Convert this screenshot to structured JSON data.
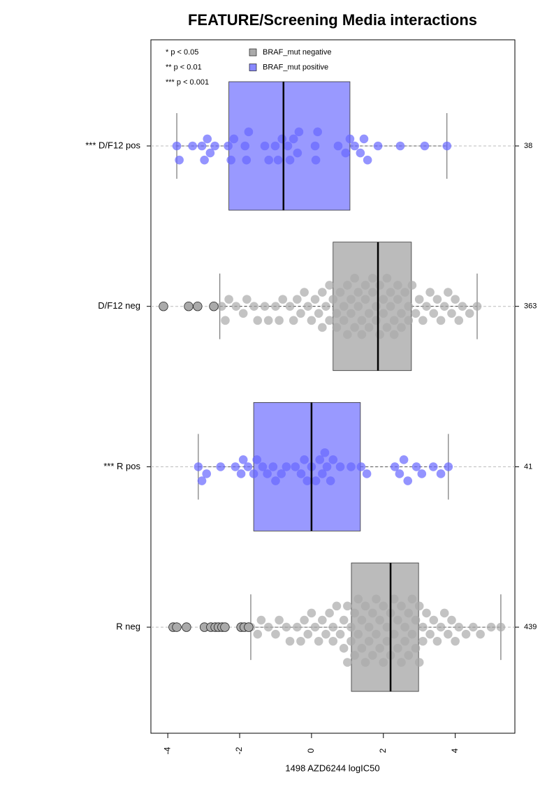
{
  "chart_data": {
    "type": "boxplot",
    "title": "FEATURE/Screening Media interactions",
    "xlabel": "1498 AZD6244 logIC50",
    "xlim": [
      -4.47,
      5.66
    ],
    "xticks": [
      -4,
      -2,
      0,
      2,
      4
    ],
    "annotations": [
      "* p < 0.05",
      "** p < 0.01",
      "*** p < 0.001"
    ],
    "legend": [
      {
        "name": "BRAF_mut negative",
        "color": "#aaaaaa"
      },
      {
        "name": "BRAF_mut positive",
        "color": "#8888ff"
      }
    ],
    "groups": [
      {
        "label": "*** D/F12 pos",
        "count": 38,
        "box_color": "#9999ff",
        "point_color": "#6666ff",
        "whisker_low": -3.75,
        "q1": -2.3,
        "median": -0.78,
        "q3": 1.07,
        "whisker_high": 3.77,
        "points": [
          -3.68,
          -3.31,
          -3.05,
          -2.9,
          -2.82,
          -2.69,
          -2.32,
          -2.24,
          -2.16,
          -1.85,
          -1.81,
          -1.75,
          -1.19,
          -1.01,
          -0.93,
          -0.82,
          -0.66,
          -0.6,
          -0.39,
          -0.35,
          0.12,
          0.17,
          0.74,
          0.95,
          1.07,
          1.36,
          1.46,
          1.56,
          1.85,
          2.47,
          3.15,
          3.77,
          -3.75,
          -2.98,
          -1.3,
          -0.5,
          0.1,
          1.2
        ],
        "outliers": []
      },
      {
        "label": "D/F12 neg",
        "count": 363,
        "box_color": "#bbbbbb",
        "point_color": "#aaaaaa",
        "whisker_low": -2.55,
        "q1": 0.6,
        "median": 1.85,
        "q3": 2.78,
        "whisker_high": 4.61,
        "points": [
          -2.5,
          -2.4,
          -2.3,
          -2.1,
          -1.9,
          -1.8,
          -1.6,
          -1.5,
          -1.3,
          -1.2,
          -1.0,
          -0.9,
          -0.8,
          -0.6,
          -0.5,
          -0.4,
          -0.3,
          -0.2,
          -0.1,
          0.0,
          0.1,
          0.2,
          0.3,
          0.3,
          0.4,
          0.5,
          0.5,
          0.6,
          0.7,
          0.7,
          0.8,
          0.9,
          0.9,
          1.0,
          1.0,
          1.1,
          1.1,
          1.2,
          1.2,
          1.3,
          1.3,
          1.4,
          1.4,
          1.5,
          1.5,
          1.6,
          1.6,
          1.7,
          1.7,
          1.8,
          1.8,
          1.9,
          1.9,
          2.0,
          2.0,
          2.1,
          2.1,
          2.2,
          2.2,
          2.3,
          2.3,
          2.4,
          2.4,
          2.5,
          2.5,
          2.6,
          2.7,
          2.7,
          2.8,
          2.9,
          3.0,
          3.1,
          3.2,
          3.3,
          3.4,
          3.5,
          3.6,
          3.7,
          3.8,
          3.9,
          4.0,
          4.1,
          4.2,
          4.4,
          4.61
        ],
        "outliers": [
          -4.12,
          -3.42,
          -3.17,
          -2.72
        ]
      },
      {
        "label": "*** R pos",
        "count": 41,
        "box_color": "#9999ff",
        "point_color": "#6666ff",
        "whisker_low": -3.15,
        "q1": -1.61,
        "median": 0.0,
        "q3": 1.36,
        "whisker_high": 3.81,
        "points": [
          -3.15,
          -2.92,
          -2.53,
          -2.12,
          -1.96,
          -1.77,
          -1.61,
          -1.52,
          -1.36,
          -1.23,
          -1.07,
          -0.84,
          -0.7,
          -0.45,
          -0.29,
          -0.12,
          0.0,
          0.12,
          0.23,
          0.37,
          0.43,
          0.53,
          0.8,
          1.38,
          1.54,
          2.32,
          2.45,
          2.57,
          2.68,
          2.92,
          3.07,
          3.39,
          3.6,
          3.81,
          -3.05,
          -1.9,
          -1.0,
          -0.2,
          0.3,
          0.6,
          1.1
        ],
        "outliers": []
      },
      {
        "label": "R neg",
        "count": 439,
        "box_color": "#bbbbbb",
        "point_color": "#aaaaaa",
        "whisker_low": -1.69,
        "q1": 1.11,
        "median": 2.2,
        "q3": 2.98,
        "whisker_high": 5.27,
        "points": [
          -1.69,
          -1.5,
          -1.4,
          -1.2,
          -1.0,
          -0.9,
          -0.7,
          -0.6,
          -0.4,
          -0.3,
          -0.2,
          -0.1,
          0.0,
          0.1,
          0.2,
          0.3,
          0.4,
          0.5,
          0.6,
          0.6,
          0.7,
          0.8,
          0.9,
          0.9,
          1.0,
          1.0,
          1.1,
          1.1,
          1.2,
          1.2,
          1.3,
          1.3,
          1.4,
          1.4,
          1.5,
          1.5,
          1.6,
          1.6,
          1.7,
          1.7,
          1.8,
          1.8,
          1.9,
          1.9,
          2.0,
          2.0,
          2.1,
          2.1,
          2.2,
          2.2,
          2.3,
          2.3,
          2.4,
          2.4,
          2.5,
          2.5,
          2.6,
          2.6,
          2.7,
          2.7,
          2.8,
          2.8,
          2.9,
          2.9,
          3.0,
          3.0,
          3.1,
          3.1,
          3.2,
          3.3,
          3.4,
          3.5,
          3.6,
          3.7,
          3.8,
          3.9,
          4.0,
          4.1,
          4.3,
          4.5,
          4.7,
          5.0,
          5.27
        ],
        "outliers": [
          -3.85,
          -3.75,
          -3.48,
          -2.98,
          -2.8,
          -2.68,
          -2.59,
          -2.49,
          -2.41,
          -1.96,
          -1.87,
          -1.75
        ]
      }
    ]
  }
}
